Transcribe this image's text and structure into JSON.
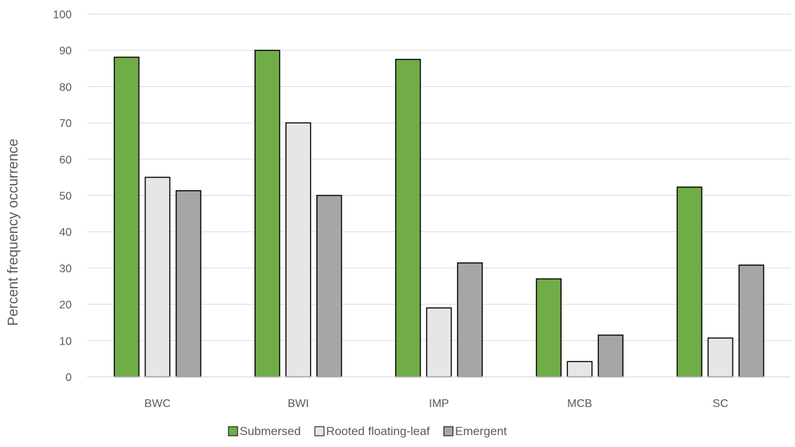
{
  "chart_data": {
    "type": "bar",
    "title": "",
    "xlabel": "",
    "ylabel": "Percent frequency occurrence",
    "categories": [
      "BWC",
      "BWI",
      "IMP",
      "MCB",
      "SC"
    ],
    "series": [
      {
        "name": "Submersed",
        "color": "#70ad47",
        "values": [
          88.1,
          90.0,
          87.5,
          27.0,
          52.3
        ]
      },
      {
        "name": "Rooted floating-leaf",
        "color": "#e7e6e6",
        "values": [
          55.0,
          70.0,
          19.0,
          4.2,
          10.7
        ]
      },
      {
        "name": "Emergent",
        "color": "#a6a6a6",
        "values": [
          51.3,
          50.0,
          31.4,
          11.5,
          30.8
        ]
      }
    ],
    "ylim": [
      0,
      100
    ],
    "yticks": [
      "0",
      "10",
      "20",
      "30",
      "40",
      "50",
      "60",
      "70",
      "80",
      "90",
      "100"
    ],
    "grid": true,
    "legend_position": "bottom",
    "gridline_color": "#d9d9d9",
    "bar_outline_color": "#000000"
  }
}
